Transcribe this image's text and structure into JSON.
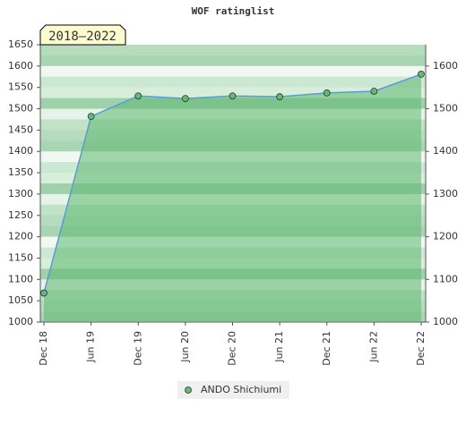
{
  "chart_data": {
    "type": "line",
    "title": "WOF ratinglist",
    "badge": "2018–2022",
    "categories": [
      "Dec 18",
      "Jun 19",
      "Dec 19",
      "Jun 20",
      "Dec 20",
      "Jun 21",
      "Dec 21",
      "Jun 22",
      "Dec 22"
    ],
    "series": [
      {
        "name": "ANDO Shichiumi",
        "color": "#5b9bd5",
        "marker_color": "#66bb6a",
        "fill": "#5cb870",
        "values": [
          1068,
          1482,
          1530,
          1524,
          1530,
          1528,
          1537,
          1541,
          1581
        ]
      }
    ],
    "ylim": [
      1000,
      1650
    ],
    "yticks": [
      1000,
      1050,
      1100,
      1150,
      1200,
      1250,
      1300,
      1350,
      1400,
      1450,
      1500,
      1550,
      1600,
      1650
    ],
    "y2lim": [
      1000,
      1650
    ],
    "y2ticks": [
      1000,
      1100,
      1200,
      1300,
      1400,
      1500,
      1600
    ]
  }
}
